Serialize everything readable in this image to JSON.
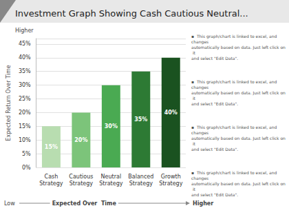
{
  "chart_data": {
    "type": "bar",
    "title": "Investment Graph Showing Cash Cautious Neutral...",
    "categories": [
      "Cash\nStrategy",
      "Cautious\nStrategy",
      "Neutral\nStrategy",
      "Balanced\nStrategy",
      "Growth\nStrategy"
    ],
    "values": [
      15,
      20,
      30,
      35,
      40
    ],
    "value_labels": [
      "15%",
      "20%",
      "30%",
      "35%",
      "40%"
    ],
    "data_labels": true,
    "colors": [
      "#b8ddb0",
      "#7cc47a",
      "#4aaa52",
      "#2d7a34",
      "#1a5220"
    ],
    "ylabel": "Expected Return Over Time",
    "xlabel": "Expected Over  Time",
    "ylim": [
      0,
      47
    ],
    "yticks": [
      {
        "value": 0,
        "label": "0%"
      },
      {
        "value": 5,
        "label": "5%"
      },
      {
        "value": 10,
        "label": "10%"
      },
      {
        "value": 15,
        "label": "15%"
      },
      {
        "value": 20,
        "label": "20%"
      },
      {
        "value": 25,
        "label": "25%"
      },
      {
        "value": 30,
        "label": "30%"
      },
      {
        "value": 35,
        "label": "35%"
      },
      {
        "value": 40,
        "label": "40%"
      },
      {
        "value": 45,
        "label": "45%"
      }
    ],
    "grid": true,
    "annotations": [
      "Higher",
      "Low",
      "Higher",
      "▪  This graph/chart is linked to excel, and changes\nautomatically based on data. Just left click on it\nand select \"Edit Data\".",
      "▪  This graph/chart is linked to excel, and changes\nautomatically based on data. Just left click on it\nand select \"Edit Data\".",
      "▪  This graph/chart is linked to excel, and changes\nautomatically based on data. Just left click on it\nand select \"Edit Data\".",
      "▪  This graph/chart is linked to excel, and changes\nautomatically based on data. Just left click on it\nand select \"Edit Data\"."
    ]
  }
}
